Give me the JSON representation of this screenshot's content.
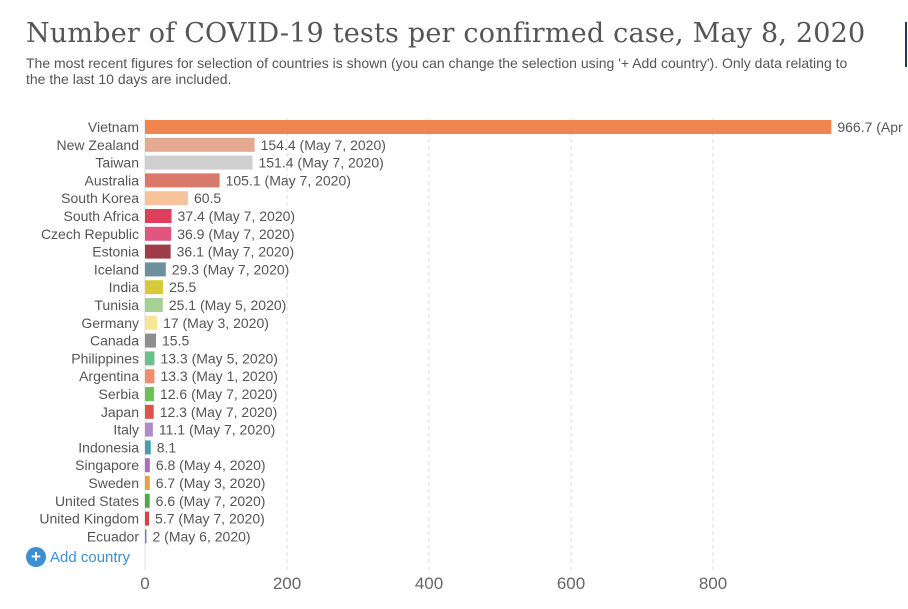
{
  "header": {
    "title": "Number of COVID-19 tests per confirmed case, May 8, 2020",
    "subtitle": "The most recent figures for selection of countries is shown (you can change the selection using '+ Add country'). Only data relating to the the last 10 days are included."
  },
  "controls": {
    "add_country_label": "Add country"
  },
  "chart_data": {
    "type": "bar",
    "orientation": "horizontal",
    "title": "Number of COVID-19 tests per confirmed case, May 8, 2020",
    "xlim": [
      0,
      966.7
    ],
    "x_ticks": [
      0,
      200,
      400,
      600,
      800
    ],
    "grid": "vertical dashed",
    "categories": [
      "Vietnam",
      "New Zealand",
      "Taiwan",
      "Australia",
      "South Korea",
      "South Africa",
      "Czech Republic",
      "Estonia",
      "Iceland",
      "India",
      "Tunisia",
      "Germany",
      "Canada",
      "Philippines",
      "Argentina",
      "Serbia",
      "Japan",
      "Italy",
      "Indonesia",
      "Singapore",
      "Sweden",
      "United States",
      "United Kingdom",
      "Ecuador"
    ],
    "values": [
      966.7,
      154.4,
      151.4,
      105.1,
      60.5,
      37.4,
      36.9,
      36.1,
      29.3,
      25.5,
      25.1,
      17,
      15.5,
      13.3,
      13.3,
      12.6,
      12.3,
      11.1,
      8.1,
      6.8,
      6.7,
      6.6,
      5.7,
      2
    ],
    "value_labels": [
      "966.7 (Apr",
      "154.4 (May 7, 2020)",
      "151.4 (May 7, 2020)",
      "105.1 (May 7, 2020)",
      "60.5",
      "37.4 (May 7, 2020)",
      "36.9 (May 7, 2020)",
      "36.1 (May 7, 2020)",
      "29.3 (May 7, 2020)",
      "25.5",
      "25.1 (May 5, 2020)",
      "17 (May 3, 2020)",
      "15.5",
      "13.3 (May 5, 2020)",
      "13.3 (May 1, 2020)",
      "12.6 (May 7, 2020)",
      "12.3 (May 7, 2020)",
      "11.1 (May 7, 2020)",
      "8.1",
      "6.8 (May 4, 2020)",
      "6.7 (May 3, 2020)",
      "6.6 (May 7, 2020)",
      "5.7 (May 7, 2020)",
      "2 (May 6, 2020)"
    ],
    "colors": [
      "#f08550",
      "#e4a98e",
      "#cfcfcf",
      "#d9796c",
      "#f7c39c",
      "#df3e5c",
      "#e0567f",
      "#9e3d48",
      "#6e8f9d",
      "#d6ca3a",
      "#a4d194",
      "#f5e69a",
      "#8e8e8e",
      "#6dbf8b",
      "#ec8e6e",
      "#6abf57",
      "#e0534b",
      "#b08bc6",
      "#4a9bab",
      "#a66fc4",
      "#e8a040",
      "#53a64a",
      "#d84344",
      "#7b7fc9"
    ]
  }
}
